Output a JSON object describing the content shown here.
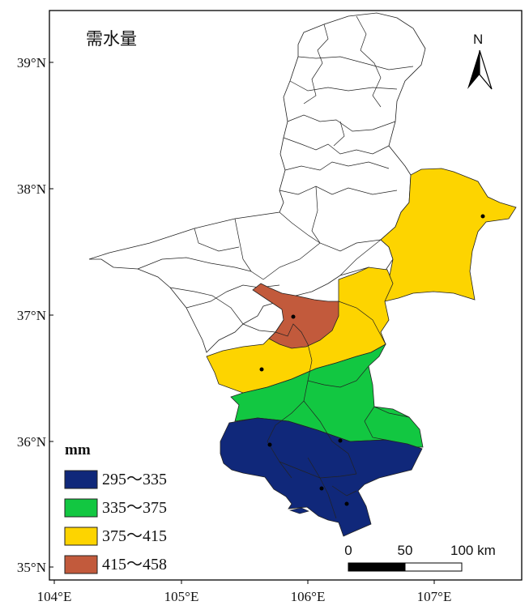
{
  "title": "需水量",
  "north_label": "N",
  "y_ticks": [
    "39°N",
    "38°N",
    "37°N",
    "36°N",
    "35°N"
  ],
  "x_ticks": [
    "104°E",
    "105°E",
    "106°E",
    "107°E"
  ],
  "legend": {
    "unit": "mm",
    "items": [
      {
        "label": "295～335",
        "color": "#10287a"
      },
      {
        "label": "335～375",
        "color": "#12c741"
      },
      {
        "label": "375～415",
        "color": "#fdd400"
      },
      {
        "label": "415～458",
        "color": "#c25a3c"
      }
    ]
  },
  "scale_bar": {
    "labels": [
      "0",
      "50",
      "100 km"
    ]
  },
  "stations": 7
}
